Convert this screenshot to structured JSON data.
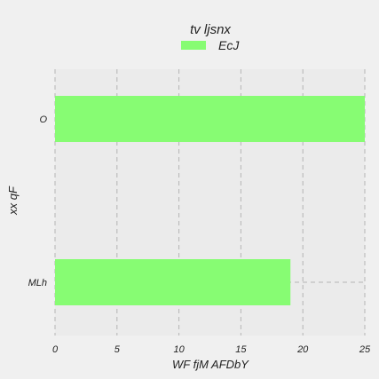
{
  "chart_data": {
    "type": "bar",
    "orientation": "horizontal",
    "title": "tv  ljsnx",
    "xlabel": "WF fjM AFDbY",
    "ylabel": "xx  qF",
    "categories": [
      "MLh",
      "O"
    ],
    "series": [
      {
        "name": "EcJ",
        "values": [
          19,
          25
        ],
        "color": "#87fc73"
      }
    ],
    "xlim": [
      0,
      25
    ],
    "xticks": [
      "0",
      "5",
      "10",
      "15",
      "20",
      "25"
    ],
    "grid": true,
    "legend_position": "top-center",
    "colors": {
      "background": "#f0f0f0",
      "plot_background": "#ebebeb",
      "grid": "#b4b4b4",
      "text": "#222222"
    }
  }
}
